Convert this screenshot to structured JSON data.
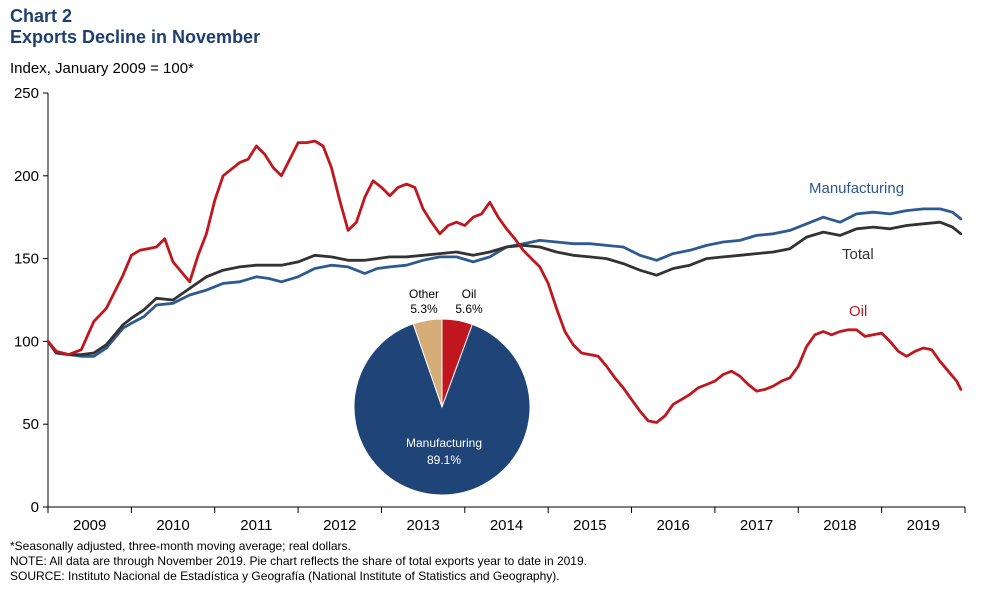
{
  "header": {
    "chart_label": "Chart 2",
    "title": "Exports Decline in November",
    "unit": "Index, January 2009 = 100*"
  },
  "footnotes": {
    "seasonal": "*Seasonally adjusted, three-month moving average; real dollars.",
    "note": "NOTE: All data are through November 2019. Pie chart reflects the share of total exports year to date in 2019.",
    "source": "SOURCE: Instituto Nacional de Estadística y Geografía (National Institute of Statistics and Geography)."
  },
  "chart_data": [
    {
      "type": "line",
      "ylim": [
        0,
        250
      ],
      "yticks": [
        0,
        50,
        100,
        150,
        200,
        250
      ],
      "xlim": [
        2009.0,
        2019.95
      ],
      "year_labels": [
        "2009",
        "2010",
        "2011",
        "2012",
        "2013",
        "2014",
        "2015",
        "2016",
        "2017",
        "2018",
        "2019"
      ],
      "grid": false,
      "series": [
        {
          "name": "Manufacturing",
          "color": "#2e5a92",
          "points": [
            [
              2009.0,
              100
            ],
            [
              2009.1,
              93
            ],
            [
              2009.25,
              92
            ],
            [
              2009.4,
              91
            ],
            [
              2009.55,
              91
            ],
            [
              2009.7,
              96
            ],
            [
              2009.9,
              108
            ],
            [
              2010.0,
              111
            ],
            [
              2010.15,
              115
            ],
            [
              2010.3,
              122
            ],
            [
              2010.5,
              123
            ],
            [
              2010.7,
              128
            ],
            [
              2010.9,
              131
            ],
            [
              2011.1,
              135
            ],
            [
              2011.3,
              136
            ],
            [
              2011.5,
              139
            ],
            [
              2011.65,
              138
            ],
            [
              2011.8,
              136
            ],
            [
              2012.0,
              139
            ],
            [
              2012.2,
              144
            ],
            [
              2012.4,
              146
            ],
            [
              2012.6,
              145
            ],
            [
              2012.8,
              141
            ],
            [
              2012.95,
              144
            ],
            [
              2013.1,
              145
            ],
            [
              2013.3,
              146
            ],
            [
              2013.5,
              149
            ],
            [
              2013.7,
              151
            ],
            [
              2013.9,
              151
            ],
            [
              2014.1,
              148
            ],
            [
              2014.3,
              151
            ],
            [
              2014.5,
              157
            ],
            [
              2014.7,
              159
            ],
            [
              2014.9,
              161
            ],
            [
              2015.1,
              160
            ],
            [
              2015.3,
              159
            ],
            [
              2015.5,
              159
            ],
            [
              2015.7,
              158
            ],
            [
              2015.9,
              157
            ],
            [
              2016.1,
              152
            ],
            [
              2016.3,
              149
            ],
            [
              2016.5,
              153
            ],
            [
              2016.7,
              155
            ],
            [
              2016.9,
              158
            ],
            [
              2017.1,
              160
            ],
            [
              2017.3,
              161
            ],
            [
              2017.5,
              164
            ],
            [
              2017.7,
              165
            ],
            [
              2017.9,
              167
            ],
            [
              2018.1,
              171
            ],
            [
              2018.3,
              175
            ],
            [
              2018.5,
              172
            ],
            [
              2018.7,
              177
            ],
            [
              2018.9,
              178
            ],
            [
              2019.1,
              177
            ],
            [
              2019.3,
              179
            ],
            [
              2019.5,
              180
            ],
            [
              2019.7,
              180
            ],
            [
              2019.85,
              178
            ],
            [
              2019.95,
              174
            ]
          ]
        },
        {
          "name": "Total",
          "color": "#333333",
          "points": [
            [
              2009.0,
              100
            ],
            [
              2009.1,
              93
            ],
            [
              2009.25,
              92
            ],
            [
              2009.4,
              92
            ],
            [
              2009.55,
              93
            ],
            [
              2009.7,
              98
            ],
            [
              2009.9,
              110
            ],
            [
              2010.0,
              114
            ],
            [
              2010.15,
              119
            ],
            [
              2010.3,
              126
            ],
            [
              2010.5,
              125
            ],
            [
              2010.7,
              132
            ],
            [
              2010.9,
              139
            ],
            [
              2011.1,
              143
            ],
            [
              2011.3,
              145
            ],
            [
              2011.5,
              146
            ],
            [
              2011.65,
              146
            ],
            [
              2011.8,
              146
            ],
            [
              2012.0,
              148
            ],
            [
              2012.2,
              152
            ],
            [
              2012.4,
              151
            ],
            [
              2012.6,
              149
            ],
            [
              2012.8,
              149
            ],
            [
              2012.95,
              150
            ],
            [
              2013.1,
              151
            ],
            [
              2013.3,
              151
            ],
            [
              2013.5,
              152
            ],
            [
              2013.7,
              153
            ],
            [
              2013.9,
              154
            ],
            [
              2014.1,
              152
            ],
            [
              2014.3,
              154
            ],
            [
              2014.5,
              157
            ],
            [
              2014.7,
              158
            ],
            [
              2014.9,
              157
            ],
            [
              2015.1,
              154
            ],
            [
              2015.3,
              152
            ],
            [
              2015.5,
              151
            ],
            [
              2015.7,
              150
            ],
            [
              2015.9,
              147
            ],
            [
              2016.1,
              143
            ],
            [
              2016.3,
              140
            ],
            [
              2016.5,
              144
            ],
            [
              2016.7,
              146
            ],
            [
              2016.9,
              150
            ],
            [
              2017.1,
              151
            ],
            [
              2017.3,
              152
            ],
            [
              2017.5,
              153
            ],
            [
              2017.7,
              154
            ],
            [
              2017.9,
              156
            ],
            [
              2018.1,
              163
            ],
            [
              2018.3,
              166
            ],
            [
              2018.5,
              164
            ],
            [
              2018.7,
              168
            ],
            [
              2018.9,
              169
            ],
            [
              2019.1,
              168
            ],
            [
              2019.3,
              170
            ],
            [
              2019.5,
              171
            ],
            [
              2019.7,
              172
            ],
            [
              2019.85,
              169
            ],
            [
              2019.95,
              165
            ]
          ]
        },
        {
          "name": "Oil",
          "color": "#c0171f",
          "points": [
            [
              2009.0,
              100
            ],
            [
              2009.1,
              94
            ],
            [
              2009.25,
              92
            ],
            [
              2009.4,
              95
            ],
            [
              2009.55,
              112
            ],
            [
              2009.7,
              120
            ],
            [
              2009.9,
              140
            ],
            [
              2010.0,
              152
            ],
            [
              2010.1,
              155
            ],
            [
              2010.2,
              156
            ],
            [
              2010.3,
              157
            ],
            [
              2010.4,
              162
            ],
            [
              2010.5,
              148
            ],
            [
              2010.7,
              136
            ],
            [
              2010.8,
              152
            ],
            [
              2010.9,
              165
            ],
            [
              2011.0,
              185
            ],
            [
              2011.1,
              200
            ],
            [
              2011.2,
              204
            ],
            [
              2011.3,
              208
            ],
            [
              2011.4,
              210
            ],
            [
              2011.5,
              218
            ],
            [
              2011.6,
              213
            ],
            [
              2011.7,
              205
            ],
            [
              2011.8,
              200
            ],
            [
              2011.9,
              210
            ],
            [
              2012.0,
              220
            ],
            [
              2012.1,
              220
            ],
            [
              2012.2,
              221
            ],
            [
              2012.3,
              218
            ],
            [
              2012.4,
              205
            ],
            [
              2012.5,
              185
            ],
            [
              2012.6,
              167
            ],
            [
              2012.7,
              172
            ],
            [
              2012.8,
              187
            ],
            [
              2012.9,
              197
            ],
            [
              2013.0,
              193
            ],
            [
              2013.1,
              188
            ],
            [
              2013.2,
              193
            ],
            [
              2013.3,
              195
            ],
            [
              2013.4,
              193
            ],
            [
              2013.5,
              180
            ],
            [
              2013.6,
              172
            ],
            [
              2013.7,
              165
            ],
            [
              2013.8,
              170
            ],
            [
              2013.9,
              172
            ],
            [
              2014.0,
              170
            ],
            [
              2014.1,
              175
            ],
            [
              2014.2,
              177
            ],
            [
              2014.3,
              184
            ],
            [
              2014.4,
              175
            ],
            [
              2014.5,
              168
            ],
            [
              2014.6,
              162
            ],
            [
              2014.7,
              155
            ],
            [
              2014.8,
              150
            ],
            [
              2014.9,
              145
            ],
            [
              2015.0,
              135
            ],
            [
              2015.1,
              120
            ],
            [
              2015.2,
              106
            ],
            [
              2015.3,
              98
            ],
            [
              2015.4,
              93
            ],
            [
              2015.5,
              92
            ],
            [
              2015.6,
              91
            ],
            [
              2015.7,
              85
            ],
            [
              2015.8,
              78
            ],
            [
              2015.9,
              72
            ],
            [
              2016.0,
              65
            ],
            [
              2016.1,
              58
            ],
            [
              2016.2,
              52
            ],
            [
              2016.3,
              51
            ],
            [
              2016.4,
              55
            ],
            [
              2016.5,
              62
            ],
            [
              2016.6,
              65
            ],
            [
              2016.7,
              68
            ],
            [
              2016.8,
              72
            ],
            [
              2016.9,
              74
            ],
            [
              2017.0,
              76
            ],
            [
              2017.1,
              80
            ],
            [
              2017.2,
              82
            ],
            [
              2017.3,
              79
            ],
            [
              2017.4,
              74
            ],
            [
              2017.5,
              70
            ],
            [
              2017.6,
              71
            ],
            [
              2017.7,
              73
            ],
            [
              2017.8,
              76
            ],
            [
              2017.9,
              78
            ],
            [
              2018.0,
              85
            ],
            [
              2018.1,
              97
            ],
            [
              2018.2,
              104
            ],
            [
              2018.3,
              106
            ],
            [
              2018.4,
              104
            ],
            [
              2018.5,
              106
            ],
            [
              2018.6,
              107
            ],
            [
              2018.7,
              107
            ],
            [
              2018.8,
              103
            ],
            [
              2018.9,
              104
            ],
            [
              2019.0,
              105
            ],
            [
              2019.1,
              100
            ],
            [
              2019.2,
              94
            ],
            [
              2019.3,
              91
            ],
            [
              2019.4,
              94
            ],
            [
              2019.5,
              96
            ],
            [
              2019.6,
              95
            ],
            [
              2019.7,
              88
            ],
            [
              2019.8,
              82
            ],
            [
              2019.9,
              76
            ],
            [
              2019.95,
              71
            ]
          ]
        }
      ],
      "annotations": [
        {
          "series": "Manufacturing",
          "color": "#2e5a92"
        },
        {
          "series": "Total",
          "color": "#333333"
        },
        {
          "series": "Oil",
          "color": "#c0171f"
        }
      ]
    },
    {
      "type": "pie",
      "slices": [
        {
          "label": "Oil",
          "value": 5.6,
          "value_label": "5.6%",
          "color": "#c0171f"
        },
        {
          "label": "Manufacturing",
          "value": 89.1,
          "value_label": "89.1%",
          "color": "#1f4478"
        },
        {
          "label": "Other",
          "value": 5.3,
          "value_label": "5.3%",
          "color": "#d4ad78"
        }
      ]
    }
  ]
}
